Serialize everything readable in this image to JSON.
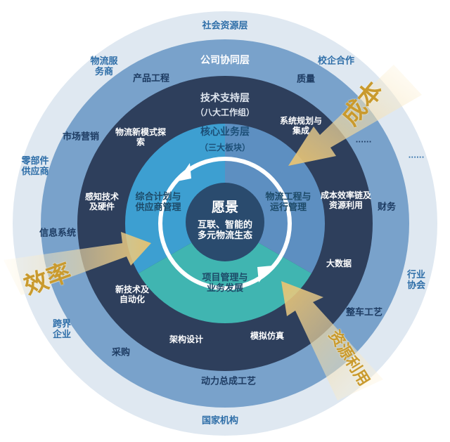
{
  "colors": {
    "social_ring": "#dfe8f1",
    "company_ring": "#79a2cb",
    "tech_ring": "#2e3f5c",
    "core_left": "#3d9fd1",
    "core_right": "#5d8fc1",
    "core_bottom": "#40b5b1",
    "vision_circle": "#2a4b6e",
    "arrow_gold": "#e9c77a"
  },
  "social_layer": {
    "title": "社会资源层",
    "items": [
      [
        "物流服",
        "务商"
      ],
      [
        "校企合作"
      ],
      [
        "......"
      ],
      [
        "零部件",
        "供应商"
      ],
      [
        "信息系统"
      ],
      [
        "行业",
        "协会"
      ],
      [
        "跨界",
        "企业"
      ],
      [
        "国家机构"
      ]
    ]
  },
  "company_layer": {
    "title": "公司协同层",
    "items": [
      [
        "产品工程"
      ],
      [
        "质量"
      ],
      [
        "市场营销"
      ],
      [
        "......"
      ],
      [
        "财务"
      ],
      [
        "整车工艺"
      ],
      [
        "采购"
      ],
      [
        "动力总成工艺"
      ]
    ]
  },
  "tech_layer": {
    "title": "技术支持层",
    "subtitle": "（八大工作组）",
    "items": [
      [
        "系统规划与",
        "集成"
      ],
      [
        "物流新模式探",
        "索"
      ],
      [
        "感知技术",
        "及硬件"
      ],
      [
        "成本效率链及",
        "资源利用"
      ],
      [
        "大数据"
      ],
      [
        "新技术及",
        "自动化"
      ],
      [
        "架构设计"
      ],
      [
        "模拟仿真"
      ]
    ]
  },
  "core_layer": {
    "title": "核心业务层",
    "subtitle": "（三大板块）",
    "items": [
      [
        "综合计划与",
        "供应商管理"
      ],
      [
        "物流工程与",
        "运行管理"
      ],
      [
        "项目管理与",
        "业务发展"
      ]
    ]
  },
  "vision": {
    "title": "愿景",
    "lines": [
      "互联、智能的",
      "多元物流生态"
    ]
  },
  "drivers": {
    "cost": "成本",
    "efficiency": "效率",
    "resource": "资源利用"
  }
}
